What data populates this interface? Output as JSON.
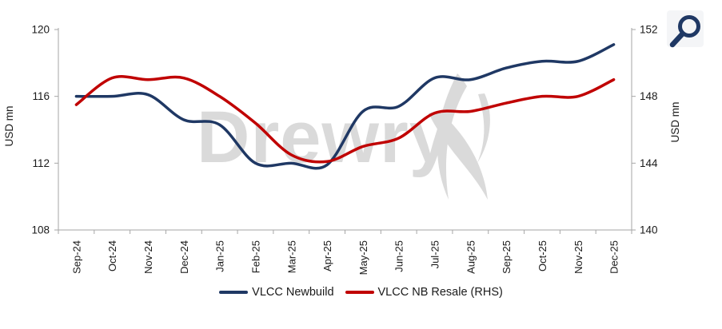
{
  "watermark": {
    "text": "Drewry",
    "color": "#dadada",
    "flame_icon": "drewry-flame"
  },
  "toolbar": {
    "zoom_icon": "magnifier",
    "icon_color": "#1f3864",
    "icon_bg": "#f3f4f6"
  },
  "axes": {
    "left": {
      "title": "USD mn",
      "ticks": [
        120,
        116,
        112,
        108
      ]
    },
    "right": {
      "title": "USD mn",
      "ticks": [
        152,
        148,
        144,
        140
      ]
    },
    "line_color": "#a6a6a6"
  },
  "legend": [
    {
      "label": "VLCC Newbuild",
      "color": "#1f3864"
    },
    {
      "label": "VLCC NB Resale (RHS)",
      "color": "#c00000"
    }
  ],
  "chart_data": {
    "type": "line",
    "smooth": true,
    "grid": false,
    "legend_position": "bottom",
    "title": "",
    "ylabel_left": "USD mn",
    "ylabel_right": "USD mn",
    "ylim_left": [
      108,
      120
    ],
    "ylim_right": [
      140,
      152
    ],
    "categories": [
      "Sep-24",
      "Oct-24",
      "Nov-24",
      "Dec-24",
      "Jan-25",
      "Feb-25",
      "Mar-25",
      "Apr-25",
      "May-25",
      "Jun-25",
      "Jul-25",
      "Aug-25",
      "Sep-25",
      "Oct-25",
      "Nov-25",
      "Dec-25"
    ],
    "series": [
      {
        "name": "VLCC Newbuild",
        "axis": "left",
        "color": "#1f3864",
        "values": [
          116.0,
          116.0,
          116.1,
          114.6,
          114.3,
          112.0,
          112.0,
          111.9,
          115.1,
          115.4,
          117.1,
          117.0,
          117.7,
          118.1,
          118.1,
          119.1
        ]
      },
      {
        "name": "VLCC NB Resale (RHS)",
        "axis": "right",
        "color": "#c00000",
        "values": [
          147.5,
          149.1,
          149.0,
          149.1,
          148.0,
          146.4,
          144.5,
          144.1,
          145.0,
          145.5,
          147.0,
          147.1,
          147.6,
          148.0,
          148.0,
          149.0
        ]
      }
    ]
  }
}
